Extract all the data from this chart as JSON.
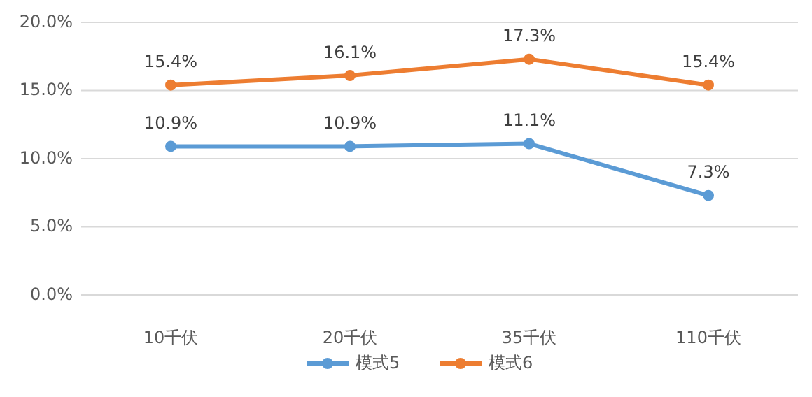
{
  "chart_data": {
    "type": "line",
    "categories": [
      "10千伏",
      "20千伏",
      "35千伏",
      "110千伏"
    ],
    "series": [
      {
        "name": "模式5",
        "color": "#5b9bd5",
        "values": [
          10.9,
          10.9,
          11.1,
          7.3
        ],
        "value_labels": [
          "10.9%",
          "10.9%",
          "11.1%",
          "7.3%"
        ]
      },
      {
        "name": "模式6",
        "color": "#ed7d31",
        "values": [
          15.4,
          16.1,
          17.3,
          15.4
        ],
        "value_labels": [
          "15.4%",
          "16.1%",
          "17.3%",
          "15.4%"
        ]
      }
    ],
    "ylim": [
      0,
      20
    ],
    "yticks": [
      {
        "value": 0,
        "label": "0.0%"
      },
      {
        "value": 5,
        "label": "5.0%"
      },
      {
        "value": 10,
        "label": "10.0%"
      },
      {
        "value": 15,
        "label": "15.0%"
      },
      {
        "value": 20,
        "label": "20.0%"
      }
    ],
    "grid": "y",
    "legend": "bottom",
    "marker": "circle",
    "line_style": "solid"
  }
}
